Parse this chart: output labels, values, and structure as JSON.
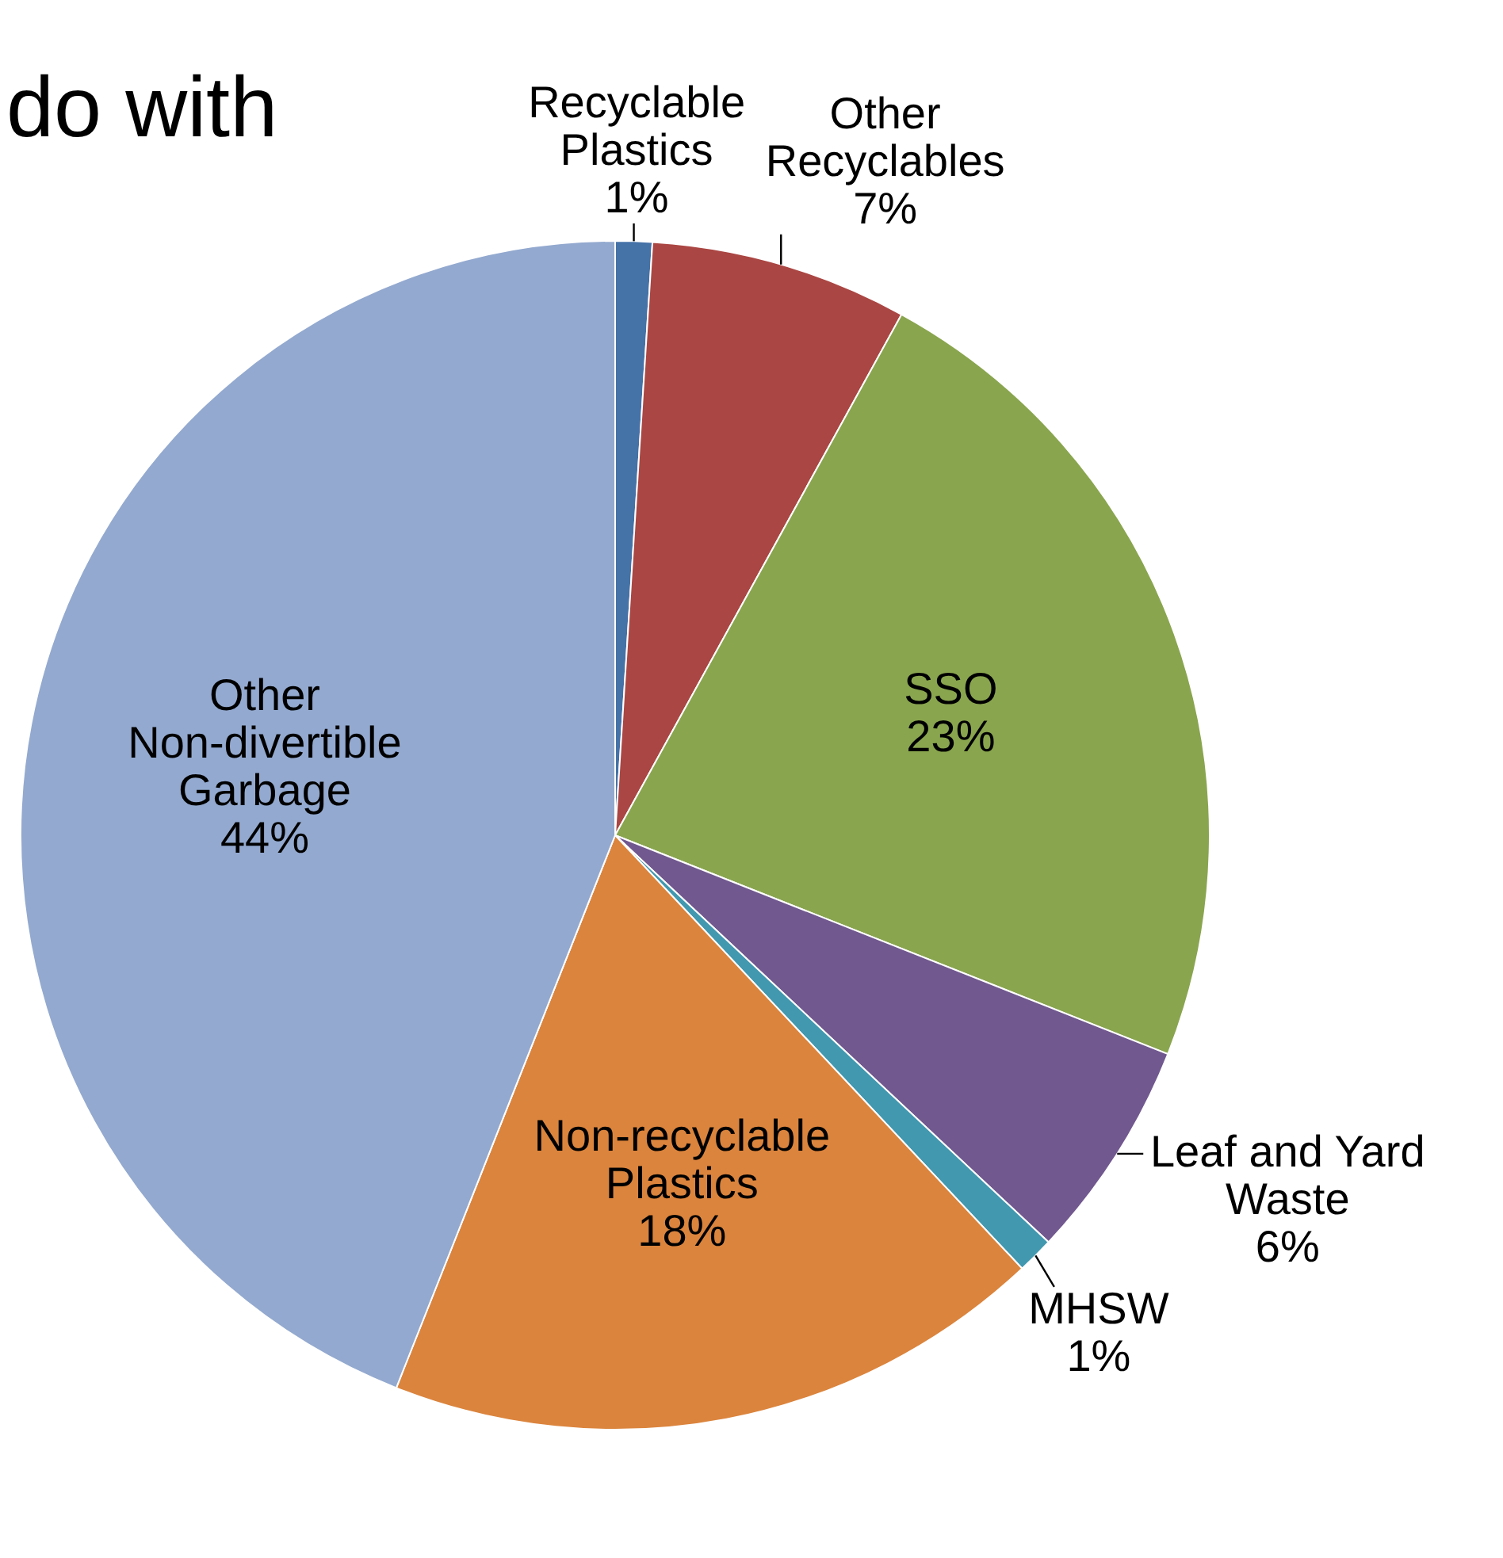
{
  "chart_data": {
    "type": "pie",
    "title": "do with",
    "categories": [
      "Recyclable Plastics",
      "Other Recyclables",
      "SSO",
      "Leaf and Yard Waste",
      "MHSW",
      "Non-recyclable Plastics",
      "Other Non-divertible Garbage"
    ],
    "values": [
      1,
      7,
      23,
      6,
      1,
      18,
      44
    ],
    "value_labels": [
      "1%",
      "7%",
      "23%",
      "6%",
      "1%",
      "18%",
      "44%"
    ],
    "colors": [
      "#4572a7",
      "#aa4643",
      "#89a54e",
      "#71588f",
      "#4198af",
      "#db843d",
      "#93a9cf"
    ]
  }
}
